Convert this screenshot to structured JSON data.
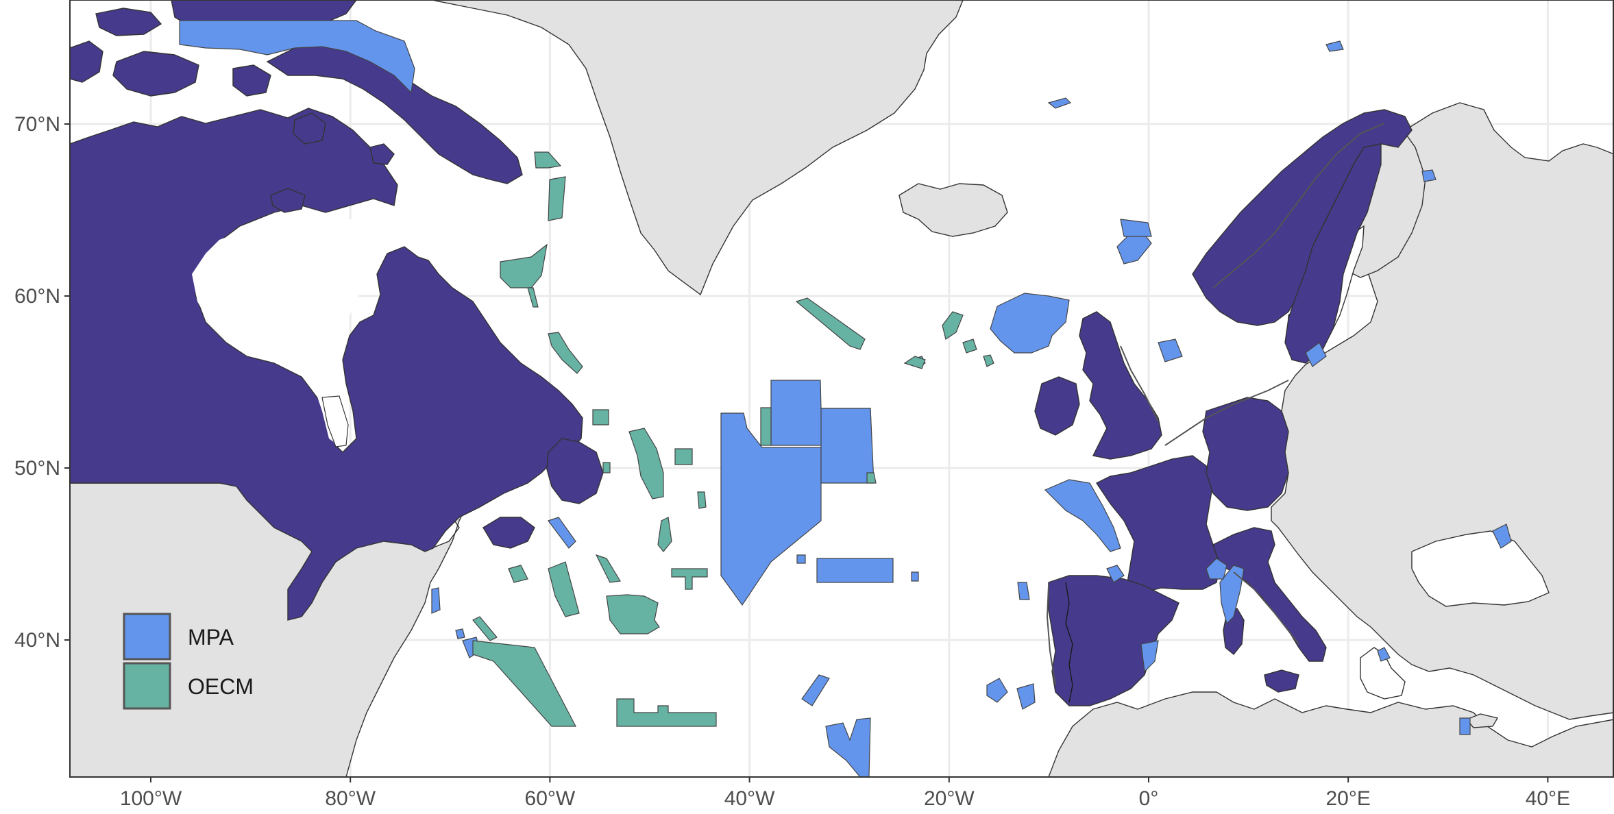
{
  "map": {
    "x_axis": {
      "ticks": [
        {
          "value": -100,
          "label": "100°W"
        },
        {
          "value": -80,
          "label": "80°W"
        },
        {
          "value": -60,
          "label": "60°W"
        },
        {
          "value": -40,
          "label": "40°W"
        },
        {
          "value": -20,
          "label": "20°W"
        },
        {
          "value": 0,
          "label": "0°"
        },
        {
          "value": 20,
          "label": "20°E"
        },
        {
          "value": 40,
          "label": "40°E"
        }
      ]
    },
    "y_axis": {
      "ticks": [
        {
          "value": 40,
          "label": "40°N"
        },
        {
          "value": 50,
          "label": "50°N"
        },
        {
          "value": 60,
          "label": "60°N"
        },
        {
          "value": 70,
          "label": "70°N"
        }
      ]
    },
    "legend": {
      "placement": "bottom-left",
      "items": [
        {
          "label": "MPA",
          "color": "#6495ED"
        },
        {
          "label": "OECM",
          "color": "#66B2A3"
        }
      ]
    },
    "colors": {
      "highlighted_country": "#463A8C",
      "other_land": "#E2E2E2",
      "ocean": "#FFFFFF",
      "mpa": "#6495ED",
      "oecm": "#66B2A3",
      "border": "#333333",
      "grid": "#EBEBEB"
    }
  }
}
